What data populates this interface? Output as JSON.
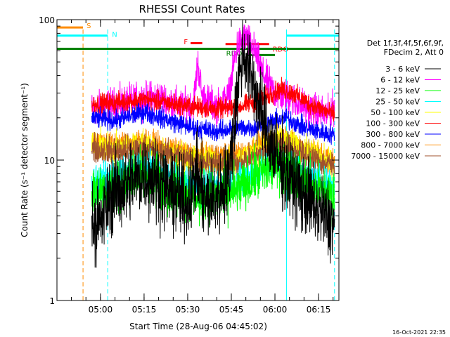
{
  "chart_data": {
    "type": "line",
    "title": "RHESSI Count Rates",
    "xlabel": "Start Time (28-Aug-06 04:45:02)",
    "ylabel": "Count Rate (s⁻¹ detector segment⁻¹)",
    "yscale": "log",
    "xlim": [
      "04:45:02",
      "06:22:00"
    ],
    "ylim": [
      1,
      100
    ],
    "x_ticks": [
      "05:00",
      "05:15",
      "05:30",
      "05:45",
      "06:00",
      "06:15"
    ],
    "y_ticks": [
      "1",
      "10",
      "100"
    ],
    "time_series_range": [
      "04:57:00",
      "06:20:30"
    ],
    "legend": {
      "header": [
        "Det 1f,3f,4f,5f,6f,9f,",
        "FDecim 2, Att 0"
      ],
      "placement": "right",
      "entries": [
        {
          "label": "3 - 6 keV",
          "color": "#000000"
        },
        {
          "label": "6 - 12 keV",
          "color": "#ff00ff"
        },
        {
          "label": "12 - 25 keV",
          "color": "#00ff00"
        },
        {
          "label": "25 - 50 keV",
          "color": "#00ffff"
        },
        {
          "label": "50 - 100 keV",
          "color": "#ffff00"
        },
        {
          "label": "100 - 300 keV",
          "color": "#ff0000"
        },
        {
          "label": "300 - 800 keV",
          "color": "#0000ff"
        },
        {
          "label": "800 - 7000 keV",
          "color": "#ff8c00"
        },
        {
          "label": "7000 - 15000 keV",
          "color": "#a0522d"
        }
      ]
    },
    "series": [
      {
        "name": "6 - 12 keV",
        "color": "#ff00ff",
        "noise": 0.06,
        "points": [
          [
            "04:57:00",
            23
          ],
          [
            "05:10:00",
            26
          ],
          [
            "05:20:00",
            28
          ],
          [
            "05:28:00",
            24
          ],
          [
            "05:32:00",
            25
          ],
          [
            "05:33:30",
            50
          ],
          [
            "05:35:00",
            28
          ],
          [
            "05:40:00",
            24
          ],
          [
            "05:44:00",
            28
          ],
          [
            "05:47:00",
            65
          ],
          [
            "05:50:00",
            75
          ],
          [
            "05:53:00",
            60
          ],
          [
            "05:56:00",
            40
          ],
          [
            "06:00:00",
            30
          ],
          [
            "06:05:00",
            28
          ],
          [
            "06:10:00",
            24
          ],
          [
            "06:18:00",
            21
          ],
          [
            "06:20:30",
            24
          ]
        ]
      },
      {
        "name": "100 - 300 keV",
        "color": "#ff0000",
        "noise": 0.035,
        "points": [
          [
            "04:57:00",
            25
          ],
          [
            "05:08:00",
            26
          ],
          [
            "05:16:00",
            27
          ],
          [
            "05:25:00",
            25
          ],
          [
            "05:32:00",
            24
          ],
          [
            "05:40:00",
            23
          ],
          [
            "05:48:00",
            24
          ],
          [
            "05:55:00",
            27
          ],
          [
            "06:02:00",
            32
          ],
          [
            "06:06:00",
            30
          ],
          [
            "06:12:00",
            25
          ],
          [
            "06:20:30",
            21
          ]
        ]
      },
      {
        "name": "300 - 800 keV",
        "color": "#0000ff",
        "noise": 0.035,
        "points": [
          [
            "04:57:00",
            20
          ],
          [
            "05:05:00",
            19
          ],
          [
            "05:15:00",
            22
          ],
          [
            "05:24:00",
            19
          ],
          [
            "05:32:00",
            17
          ],
          [
            "05:40:00",
            16
          ],
          [
            "05:47:00",
            17
          ],
          [
            "05:53:00",
            17
          ],
          [
            "06:00:00",
            19
          ],
          [
            "06:04:00",
            20
          ],
          [
            "06:10:00",
            17
          ],
          [
            "06:20:30",
            15
          ]
        ]
      },
      {
        "name": "800 - 7000 keV",
        "color": "#ff8c00",
        "noise": 0.04,
        "points": [
          [
            "04:57:00",
            14
          ],
          [
            "05:05:00",
            13
          ],
          [
            "05:14:00",
            14
          ],
          [
            "05:24:00",
            12
          ],
          [
            "05:32:00",
            11
          ],
          [
            "05:40:00",
            11
          ],
          [
            "05:47:00",
            11
          ],
          [
            "05:55:00",
            13
          ],
          [
            "06:02:00",
            15
          ],
          [
            "06:05:00",
            14
          ],
          [
            "06:12:00",
            12
          ],
          [
            "06:20:30",
            10
          ]
        ]
      },
      {
        "name": "50 - 100 keV",
        "color": "#ffff00",
        "noise": 0.05,
        "points": [
          [
            "04:57:00",
            13
          ],
          [
            "05:05:00",
            12
          ],
          [
            "05:14:00",
            13
          ],
          [
            "05:24:00",
            11
          ],
          [
            "05:32:00",
            10
          ],
          [
            "05:40:00",
            10
          ],
          [
            "05:47:00",
            10
          ],
          [
            "05:55:00",
            12
          ],
          [
            "06:02:00",
            14
          ],
          [
            "06:06:00",
            13
          ],
          [
            "06:14:00",
            11
          ],
          [
            "06:20:30",
            9
          ]
        ]
      },
      {
        "name": "7000 - 15000 keV",
        "color": "#a0522d",
        "noise": 0.05,
        "points": [
          [
            "04:57:00",
            12
          ],
          [
            "05:05:00",
            11.5
          ],
          [
            "05:14:00",
            12
          ],
          [
            "05:24:00",
            11
          ],
          [
            "05:32:00",
            10
          ],
          [
            "05:40:00",
            9.5
          ],
          [
            "05:47:00",
            9.5
          ],
          [
            "05:55:00",
            11
          ],
          [
            "06:02:00",
            13
          ],
          [
            "06:06:00",
            12
          ],
          [
            "06:14:00",
            10
          ],
          [
            "06:20:30",
            9
          ]
        ]
      },
      {
        "name": "25 - 50 keV",
        "color": "#00ffff",
        "noise": 0.06,
        "points": [
          [
            "04:57:00",
            7
          ],
          [
            "05:05:00",
            7.5
          ],
          [
            "05:15:00",
            9
          ],
          [
            "05:24:00",
            7.5
          ],
          [
            "05:32:00",
            6.5
          ],
          [
            "05:40:00",
            6.5
          ],
          [
            "05:47:00",
            7
          ],
          [
            "05:55:00",
            8.5
          ],
          [
            "06:01:00",
            10
          ],
          [
            "06:05:00",
            9
          ],
          [
            "06:12:00",
            7.5
          ],
          [
            "06:20:30",
            6.5
          ]
        ]
      },
      {
        "name": "12 - 25 keV",
        "color": "#00ff00",
        "noise": 0.09,
        "points": [
          [
            "04:57:00",
            6
          ],
          [
            "05:05:00",
            6.5
          ],
          [
            "05:15:00",
            8
          ],
          [
            "05:24:00",
            6.5
          ],
          [
            "05:32:00",
            5.5
          ],
          [
            "05:40:00",
            5.5
          ],
          [
            "05:47:00",
            6
          ],
          [
            "05:55:00",
            8
          ],
          [
            "06:01:00",
            9.5
          ],
          [
            "06:05:00",
            8.5
          ],
          [
            "06:12:00",
            6.5
          ],
          [
            "06:20:30",
            5.5
          ]
        ]
      },
      {
        "name": "3 - 6 keV",
        "color": "#000000",
        "noise": 0.14,
        "points": [
          [
            "04:57:00",
            3.8
          ],
          [
            "05:00:00",
            3.5
          ],
          [
            "05:03:00",
            5.5
          ],
          [
            "05:10:00",
            7
          ],
          [
            "05:16:00",
            8
          ],
          [
            "05:24:00",
            6
          ],
          [
            "05:30:00",
            5
          ],
          [
            "05:33:00",
            8
          ],
          [
            "05:36:00",
            5
          ],
          [
            "05:40:00",
            5.5
          ],
          [
            "05:44:00",
            7
          ],
          [
            "05:47:00",
            30
          ],
          [
            "05:49:00",
            60
          ],
          [
            "05:52:00",
            40
          ],
          [
            "05:55:00",
            22
          ],
          [
            "05:58:00",
            14
          ],
          [
            "06:01:00",
            10
          ],
          [
            "06:06:00",
            7
          ],
          [
            "06:12:00",
            5
          ],
          [
            "06:20:30",
            3.5
          ]
        ]
      }
    ],
    "flag_bars": [
      {
        "label": "S",
        "color": "#ff8c00",
        "start": "04:45:02",
        "end": "04:54:00",
        "level": 88,
        "label_level": 91
      },
      {
        "label": "N",
        "color": "#00ffff",
        "start": "04:45:02",
        "end": "05:02:30",
        "level": 77,
        "label_level": 79
      },
      {
        "label": "F",
        "color": "#ff0000",
        "start": "05:31:00",
        "end": "05:35:00",
        "level": 68,
        "label_level": 70
      },
      {
        "label": "RDO",
        "color": "#ff0000",
        "start": "05:43:00",
        "end": "05:58:00",
        "level": 67,
        "label_level": 62
      },
      {
        "label": "",
        "color": "#00ffff",
        "start": "06:04:00",
        "end": "06:22:00",
        "level": 77,
        "label_level": 77
      },
      {
        "label": "",
        "color": "#008000",
        "start": "04:45:02",
        "end": "06:22:00",
        "level": 62,
        "label_level": 62
      },
      {
        "label": "RDO",
        "color": "#008000",
        "start": "05:50:00",
        "end": "06:00:00",
        "level": 56,
        "label_level": 58
      }
    ],
    "vertical_markers": [
      {
        "time": "04:54:00",
        "color": "#ff8c00",
        "style": "dashed"
      },
      {
        "time": "05:02:30",
        "color": "#00ffff",
        "style": "dashed"
      },
      {
        "time": "06:04:00",
        "color": "#00ffff",
        "style": "solid"
      },
      {
        "time": "06:20:30",
        "color": "#00ffff",
        "style": "dashed"
      }
    ]
  },
  "footer": {
    "timestamp": "16-Oct-2021 22:35"
  }
}
